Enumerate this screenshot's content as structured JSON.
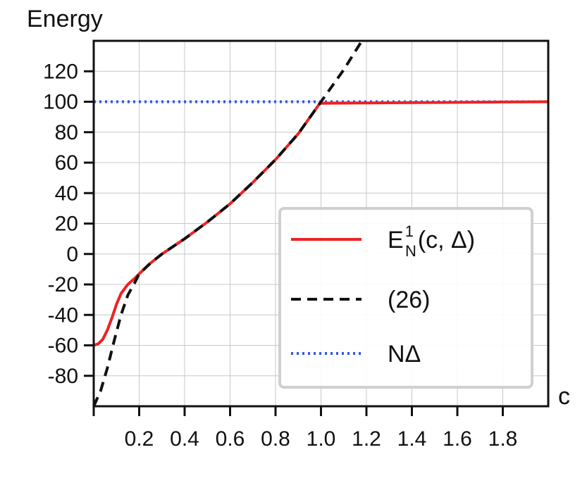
{
  "chart_data": {
    "type": "line",
    "title": "",
    "xlabel": "c",
    "ylabel": "Energy",
    "xlim": [
      0.0,
      2.0
    ],
    "ylim": [
      -100,
      140
    ],
    "x_ticks": [
      0.2,
      0.4,
      0.6,
      0.8,
      1.0,
      1.2,
      1.4,
      1.6,
      1.8
    ],
    "x_tick_labels": [
      "0.2",
      "0.4",
      "0.6",
      "0.8",
      "1.0",
      "1.2",
      "1.4",
      "1.6",
      "1.8"
    ],
    "y_ticks": [
      120,
      100,
      80,
      60,
      40,
      20,
      0,
      -20,
      -40,
      -60,
      -80
    ],
    "y_tick_labels": [
      "120",
      "100",
      "80",
      "60",
      "40",
      "20",
      "0",
      "-20",
      "-40",
      "-60",
      "-80"
    ],
    "grid": true,
    "legend": {
      "placement": "lower-right",
      "entries": [
        {
          "label_main": "E",
          "label_sup": "1",
          "label_sub": "N",
          "label_rest": "(c, Δ)",
          "color": "#ee2222",
          "style": "solid"
        },
        {
          "label_main": "(26)",
          "color": "#111111",
          "style": "dashed"
        },
        {
          "label_main": "NΔ",
          "color": "#3355ee",
          "style": "dotted"
        }
      ]
    },
    "series": [
      {
        "color": "#ee2222",
        "style": "solid",
        "x": [
          0.0,
          0.02,
          0.04,
          0.06,
          0.08,
          0.1,
          0.12,
          0.15,
          0.18,
          0.2,
          0.25,
          0.3,
          0.4,
          0.5,
          0.6,
          0.7,
          0.8,
          0.9,
          1.0,
          1.0,
          1.2,
          1.4,
          1.6,
          1.8,
          2.0
        ],
        "y": [
          -60,
          -59,
          -56,
          -50,
          -42,
          -33,
          -26,
          -20,
          -16,
          -13,
          -6,
          0,
          10,
          21,
          33,
          47,
          62,
          79,
          100,
          99,
          99.2,
          99.4,
          99.6,
          99.8,
          100
        ]
      },
      {
        "color": "#111111",
        "style": "dashed",
        "x": [
          0.0,
          0.03,
          0.06,
          0.09,
          0.12,
          0.15,
          0.18,
          0.2,
          0.25,
          0.3,
          0.4,
          0.5,
          0.6,
          0.7,
          0.8,
          0.9,
          1.0,
          1.1,
          1.18
        ],
        "y": [
          -100,
          -90,
          -75,
          -57,
          -40,
          -27,
          -19,
          -13,
          -6,
          0,
          10,
          21,
          33,
          47,
          62,
          79,
          100,
          121,
          140
        ]
      },
      {
        "color": "#3355ee",
        "style": "dotted",
        "x": [
          0.0,
          2.0
        ],
        "y": [
          100,
          100
        ]
      }
    ]
  }
}
